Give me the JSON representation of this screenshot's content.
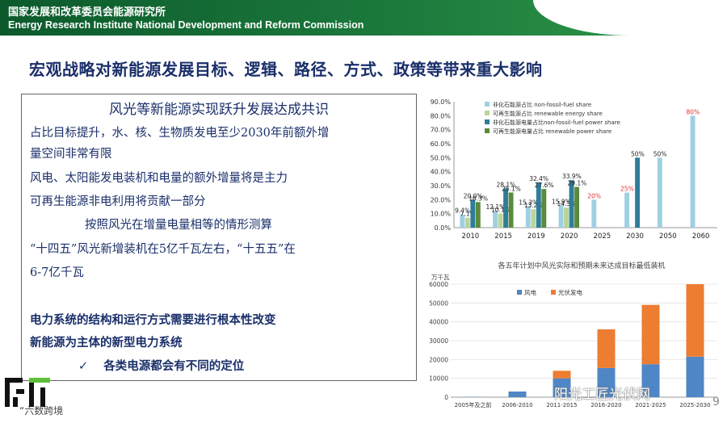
{
  "header": {
    "org_cn": "国家发展和改革委员会能源研究所",
    "org_en": "Energy Research Institute National Development and Reform Commission"
  },
  "slide_title": "宏观战略对新能源发展目标、逻辑、路径、方式、政策等带来重大影响",
  "textbox": {
    "title": "风光等新能源实现跃升发展达成共识",
    "lines": [
      "占比目标提升，水、核、生物质发电至少2030年前额外增",
      "量空间非常有限",
      "风电、太阳能发电装机和电量的额外增量将是主力",
      "可再生能源非电利用将贡献一部分",
      "按照风光在增量电量相等的情形测算",
      "“十四五”风光新增装机在5亿千瓦左右，“十五五”在",
      "6-7亿千瓦"
    ],
    "bold_lines": [
      "电力系统的结构和运行方式需要进行根本性改变",
      "新能源为主体的新型电力系统"
    ],
    "check_item": "各类电源都会有不同的定位",
    "check_mark": "✓"
  },
  "logo_text": "“六数跨境",
  "watermark": "阳光工匠光伏网",
  "page_number": "9",
  "colors": {
    "nonfossil": "#9fd0e2",
    "renewable": "#b9d59a",
    "nonfossil_power": "#2e7d9a",
    "renewable_power": "#5a8a3a",
    "wind": "#4f86c6",
    "solar": "#ed7d31",
    "highlight": "#e0312a"
  },
  "chart_data": [
    {
      "type": "bar",
      "categories": [
        "2010",
        "2015",
        "2019",
        "2020",
        "2025",
        "2030",
        "2050",
        "2060"
      ],
      "ylim": [
        0,
        90
      ],
      "yticks": [
        "0.0%",
        "10.0%",
        "20.0%",
        "30.0%",
        "40.0%",
        "50.0%",
        "60.0%",
        "70.0%",
        "80.0%",
        "90.0%"
      ],
      "legend": [
        "非化石能源占比 non-fossil-fuel share",
        "可再生能源占比 renewable energy share",
        "非化石能源电量占比non-fossil-fuel power share",
        "可再生能源电量占比 renewable power share"
      ],
      "series": [
        {
          "name": "非化石能源占比 non-fossil-fuel share",
          "values": [
            9.4,
            12.1,
            15.3,
            15.9,
            20,
            25,
            50,
            80
          ],
          "labels": [
            "9.4%",
            "12.1%",
            "15.3%",
            "15.9%",
            "20%",
            "25%",
            "50%",
            "80%"
          ]
        },
        {
          "name": "可再生能源占比 renewable energy share",
          "values": [
            7.1,
            10.1,
            13.2,
            14.3,
            null,
            null,
            null,
            null
          ],
          "labels": [
            "7.1%",
            "10.1%",
            "13.2%",
            "14.3%",
            "",
            "",
            "",
            ""
          ]
        },
        {
          "name": "非化石能源电量占比non-fossil-fuel power share",
          "values": [
            20.0,
            28.1,
            32.4,
            33.9,
            null,
            50,
            null,
            null
          ],
          "labels": [
            "20.0%",
            "28.1%",
            "32.4%",
            "33.9%",
            "",
            "50%",
            "",
            ""
          ]
        },
        {
          "name": "可再生能源电量占比 renewable power share",
          "values": [
            18.3,
            25.1,
            27.6,
            29.1,
            null,
            null,
            null,
            null
          ],
          "labels": [
            "18.3%",
            "25.1%",
            "27.6%",
            "29.1%",
            "",
            "",
            "",
            ""
          ]
        }
      ],
      "red_labels": [
        "20%",
        "25%",
        "80%"
      ]
    },
    {
      "type": "bar",
      "stacked": true,
      "title": "各五年计划中风光实际和预期未来达成目标最低装机",
      "ylabel": "万千瓦",
      "categories": [
        "2005年及之前",
        "2006-2010",
        "2011-2015",
        "2016-2020",
        "2021-2025",
        "2025-2030"
      ],
      "ylim": [
        0,
        60000
      ],
      "yticks": [
        "0",
        "10000",
        "20000",
        "30000",
        "40000",
        "50000",
        "60000"
      ],
      "series": [
        {
          "name": "风电",
          "values": [
            100,
            3000,
            10000,
            15500,
            17500,
            21500
          ]
        },
        {
          "name": "光伏发电",
          "values": [
            0,
            0,
            4000,
            20500,
            31500,
            38500
          ]
        }
      ]
    }
  ]
}
